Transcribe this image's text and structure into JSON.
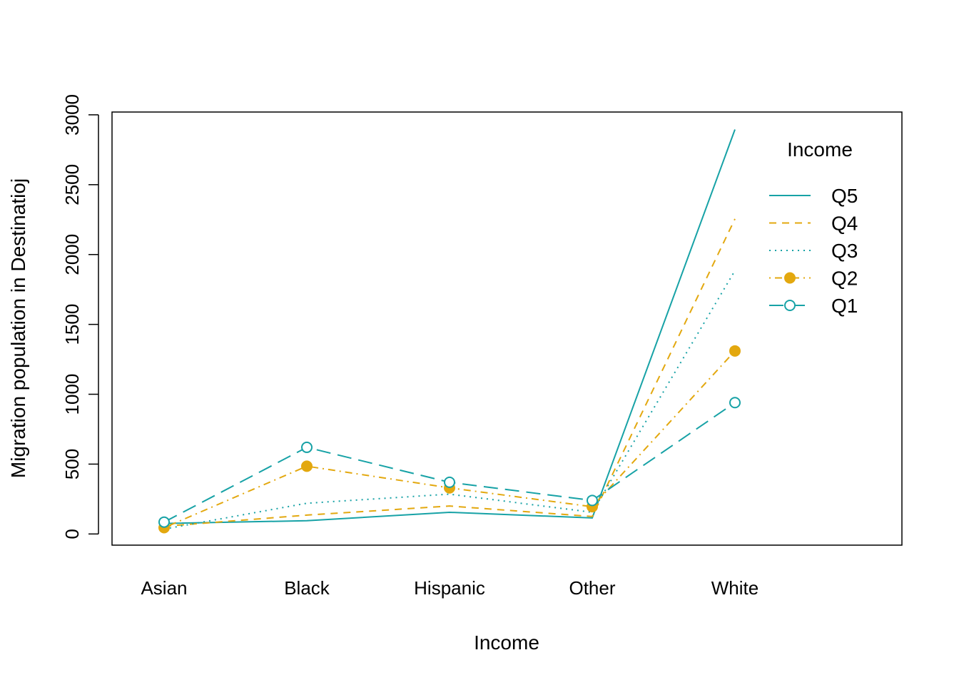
{
  "chart_data": {
    "type": "line",
    "title": "",
    "xlabel": "Income",
    "ylabel": "Migration population in Destinatioj",
    "categories": [
      "Asian",
      "Black",
      "Hispanic",
      "Other",
      "White"
    ],
    "ylim": [
      -80,
      3020
    ],
    "yticks": [
      0,
      500,
      1000,
      1500,
      2000,
      2500,
      3000
    ],
    "grid": false,
    "legend": {
      "title": "Income",
      "position": "top-right"
    },
    "series": [
      {
        "name": "Q5",
        "color": "#17a2a6",
        "dash": "solid",
        "marker": "none",
        "values": [
          75,
          95,
          155,
          115,
          2895
        ]
      },
      {
        "name": "Q4",
        "color": "#e3a80f",
        "dash": "dashed",
        "marker": "none",
        "values": [
          55,
          135,
          200,
          125,
          2255
        ]
      },
      {
        "name": "Q3",
        "color": "#17a2a6",
        "dash": "dotted",
        "marker": "none",
        "values": [
          35,
          220,
          285,
          155,
          1885
        ]
      },
      {
        "name": "Q2",
        "color": "#e3a80f",
        "dash": "dotdash",
        "marker": "filled-circle",
        "values": [
          45,
          485,
          330,
          195,
          1310
        ]
      },
      {
        "name": "Q1",
        "color": "#17a2a6",
        "dash": "longdash",
        "marker": "open-circle",
        "values": [
          85,
          620,
          370,
          240,
          940
        ]
      }
    ]
  }
}
